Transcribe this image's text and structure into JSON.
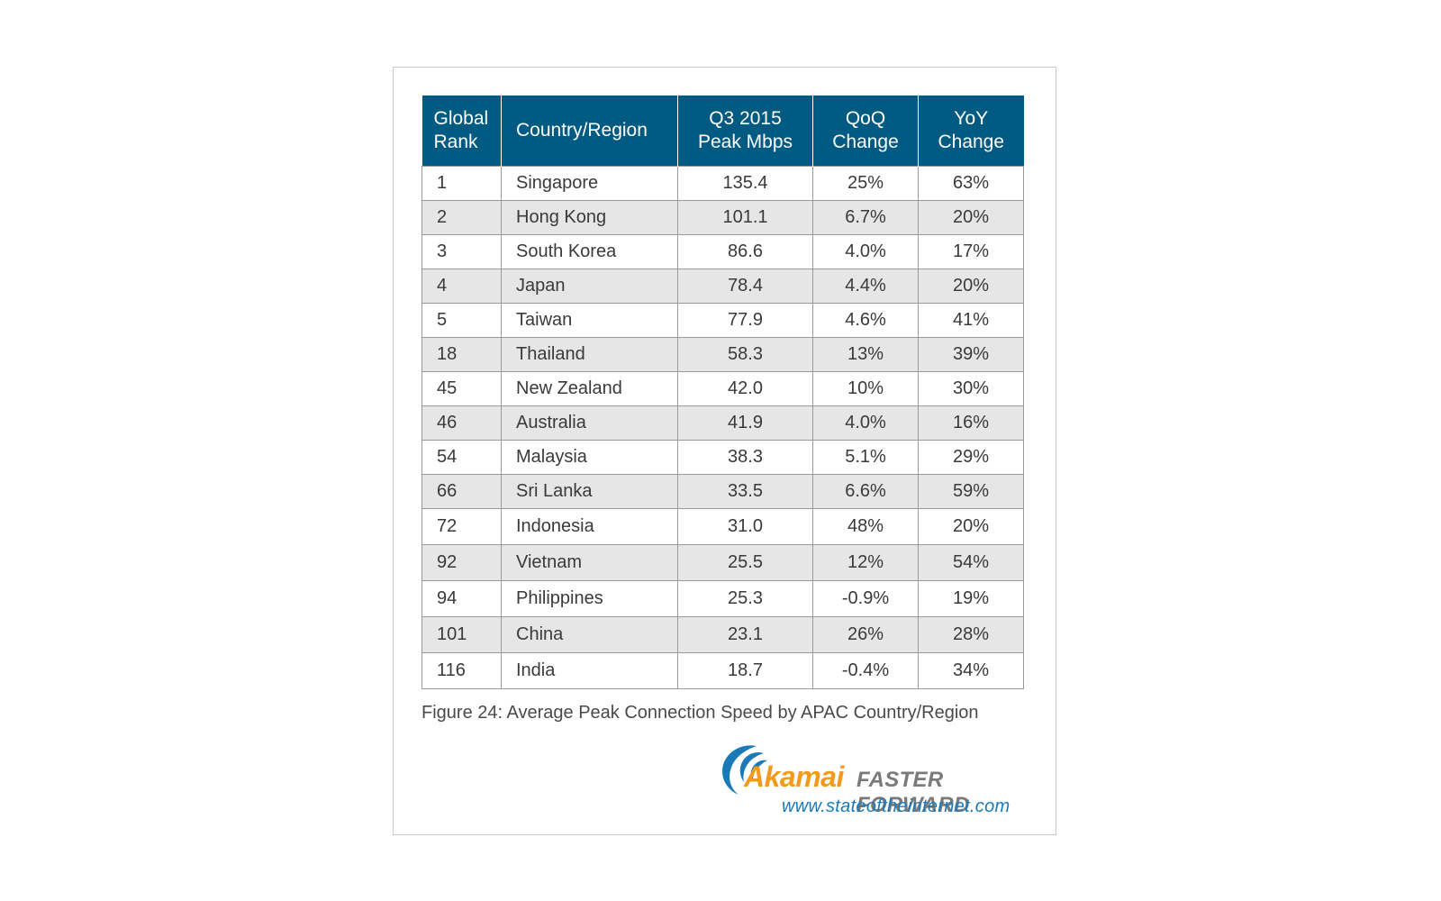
{
  "table": {
    "headers": [
      {
        "line1": "Global",
        "line2": "Rank"
      },
      {
        "line1": "Country/Region",
        "line2": ""
      },
      {
        "line1": "Q3 2015",
        "line2": "Peak Mbps"
      },
      {
        "line1": "QoQ",
        "line2": "Change"
      },
      {
        "line1": "YoY",
        "line2": "Change"
      }
    ],
    "rows": [
      {
        "rank": "1",
        "country": "Singapore",
        "peak": "135.4",
        "qoq": "25%",
        "yoy": "63%"
      },
      {
        "rank": "2",
        "country": "Hong Kong",
        "peak": "101.1",
        "qoq": "6.7%",
        "yoy": "20%"
      },
      {
        "rank": "3",
        "country": "South Korea",
        "peak": "86.6",
        "qoq": "4.0%",
        "yoy": "17%"
      },
      {
        "rank": "4",
        "country": "Japan",
        "peak": "78.4",
        "qoq": "4.4%",
        "yoy": "20%"
      },
      {
        "rank": "5",
        "country": "Taiwan",
        "peak": "77.9",
        "qoq": "4.6%",
        "yoy": "41%"
      },
      {
        "rank": "18",
        "country": "Thailand",
        "peak": "58.3",
        "qoq": "13%",
        "yoy": "39%"
      },
      {
        "rank": "45",
        "country": "New Zealand",
        "peak": "42.0",
        "qoq": "10%",
        "yoy": "30%"
      },
      {
        "rank": "46",
        "country": "Australia",
        "peak": "41.9",
        "qoq": "4.0%",
        "yoy": "16%"
      },
      {
        "rank": "54",
        "country": "Malaysia",
        "peak": "38.3",
        "qoq": "5.1%",
        "yoy": "29%"
      },
      {
        "rank": "66",
        "country": "Sri Lanka",
        "peak": "33.5",
        "qoq": "6.6%",
        "yoy": "59%"
      },
      {
        "rank": "72",
        "country": "Indonesia",
        "peak": "31.0",
        "qoq": "48%",
        "yoy": "20%"
      },
      {
        "rank": "92",
        "country": "Vietnam",
        "peak": "25.5",
        "qoq": "12%",
        "yoy": "54%"
      },
      {
        "rank": "94",
        "country": "Philippines",
        "peak": "25.3",
        "qoq": "-0.9%",
        "yoy": "19%"
      },
      {
        "rank": "101",
        "country": "China",
        "peak": "23.1",
        "qoq": "26%",
        "yoy": "28%"
      },
      {
        "rank": "116",
        "country": "India",
        "peak": "18.7",
        "qoq": "-0.4%",
        "yoy": "34%"
      }
    ]
  },
  "caption": "Figure 24: Average Peak Connection Speed by APAC Country/Region",
  "branding": {
    "logo_word": "Akamai",
    "tagline": "FASTER FORWARD",
    "url": "www.stateoftheinternet.com"
  },
  "colors": {
    "header_bg": "#005a82",
    "stripe_bg": "#e6e6e6",
    "logo_orange": "#f39a1d",
    "logo_blue": "#1a7ab8",
    "tagline_gray": "#7a7a7a"
  }
}
